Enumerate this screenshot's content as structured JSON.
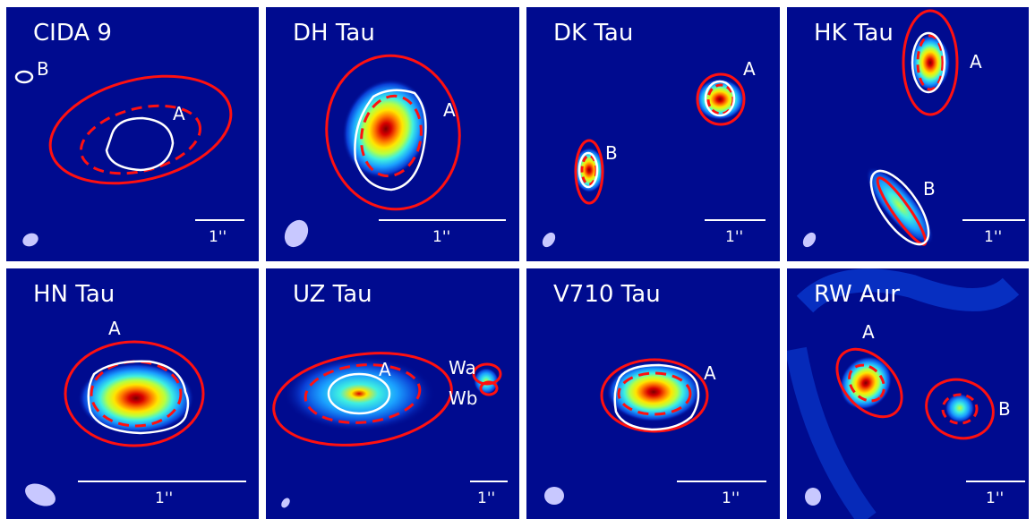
{
  "panels": [
    {
      "title": "CIDA 9",
      "labels": [
        "A",
        "B"
      ],
      "scale_label": "1''"
    },
    {
      "title": "DH Tau",
      "labels": [
        "A"
      ],
      "scale_label": "1''"
    },
    {
      "title": "DK Tau",
      "labels": [
        "A",
        "B"
      ],
      "scale_label": "1''"
    },
    {
      "title": "HK Tau",
      "labels": [
        "A",
        "B"
      ],
      "scale_label": "1''"
    },
    {
      "title": "HN Tau",
      "labels": [
        "A"
      ],
      "scale_label": "1''"
    },
    {
      "title": "UZ Tau",
      "labels": [
        "A",
        "Wa",
        "Wb"
      ],
      "scale_label": "1''"
    },
    {
      "title": "V710 Tau",
      "labels": [
        "A"
      ],
      "scale_label": "1''"
    },
    {
      "title": "RW Aur",
      "labels": [
        "A",
        "B"
      ],
      "scale_label": "1''"
    }
  ],
  "colors": {
    "background": "#000b8f",
    "contour_outer": "#ff1010",
    "contour_dashed": "#ff1010",
    "contour_white": "#ffffff",
    "colormap": [
      "#000b8f",
      "#0a3fd6",
      "#1aa0ff",
      "#3ff0e0",
      "#b8ff40",
      "#ffe600",
      "#ff7a00",
      "#d80000",
      "#7a0000"
    ]
  }
}
